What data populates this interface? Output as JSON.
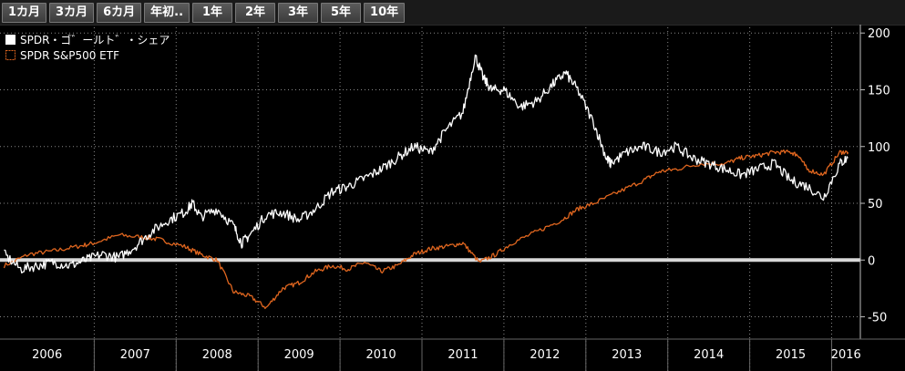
{
  "toolbar": {
    "tabs": [
      {
        "label": "1カ月"
      },
      {
        "label": "3カ月"
      },
      {
        "label": "6カ月"
      },
      {
        "label": "年初.."
      },
      {
        "label": "1年"
      },
      {
        "label": "2年"
      },
      {
        "label": "3年"
      },
      {
        "label": "5年"
      },
      {
        "label": "10年"
      }
    ]
  },
  "chart_data": {
    "type": "line",
    "title": "",
    "xlabel": "",
    "ylabel": "",
    "xlim": [
      2005.85,
      2016.35
    ],
    "ylim": [
      -60,
      205
    ],
    "yticks": [
      -50,
      0,
      50,
      100,
      150,
      200
    ],
    "xticks": [
      "2006",
      "2007",
      "2008",
      "2009",
      "2010",
      "2011",
      "2012",
      "2013",
      "2014",
      "2015",
      "2016"
    ],
    "grid": true,
    "legend_position": "top-left",
    "zero_line": true,
    "series": [
      {
        "name": "SPDR・ゴ゛ールト゛・シェア",
        "color": "#ffffff",
        "x": [
          2005.9,
          2006.1,
          2006.3,
          2006.5,
          2006.7,
          2006.9,
          2007.1,
          2007.3,
          2007.5,
          2007.7,
          2007.9,
          2008.1,
          2008.2,
          2008.3,
          2008.5,
          2008.7,
          2008.8,
          2008.9,
          2009.1,
          2009.3,
          2009.5,
          2009.7,
          2009.9,
          2010.1,
          2010.3,
          2010.5,
          2010.7,
          2010.9,
          2011.1,
          2011.3,
          2011.5,
          2011.65,
          2011.75,
          2011.85,
          2012.0,
          2012.2,
          2012.4,
          2012.6,
          2012.75,
          2012.9,
          2013.1,
          2013.25,
          2013.3,
          2013.5,
          2013.7,
          2013.9,
          2014.1,
          2014.3,
          2014.5,
          2014.7,
          2014.9,
          2015.1,
          2015.3,
          2015.5,
          2015.7,
          2015.9,
          2016.1,
          2016.2
        ],
        "y": [
          5,
          -8,
          -5,
          -2,
          -5,
          0,
          5,
          2,
          12,
          25,
          35,
          42,
          50,
          38,
          45,
          30,
          15,
          22,
          40,
          42,
          35,
          45,
          60,
          65,
          72,
          80,
          90,
          100,
          95,
          115,
          130,
          180,
          160,
          150,
          150,
          135,
          140,
          155,
          165,
          150,
          120,
          90,
          85,
          95,
          100,
          95,
          100,
          90,
          85,
          80,
          75,
          80,
          85,
          70,
          65,
          55,
          85,
          90
        ]
      },
      {
        "name": "SPDR S&P500 ETF",
        "color": "#e0661f",
        "x": [
          2005.9,
          2006.2,
          2006.5,
          2006.8,
          2007.0,
          2007.3,
          2007.6,
          2007.8,
          2008.1,
          2008.3,
          2008.5,
          2008.7,
          2008.9,
          2009.1,
          2009.3,
          2009.5,
          2009.7,
          2009.9,
          2010.1,
          2010.3,
          2010.5,
          2010.7,
          2010.9,
          2011.1,
          2011.3,
          2011.5,
          2011.7,
          2011.9,
          2012.1,
          2012.4,
          2012.7,
          2012.9,
          2013.1,
          2013.4,
          2013.7,
          2013.9,
          2014.1,
          2014.4,
          2014.7,
          2014.9,
          2015.1,
          2015.3,
          2015.5,
          2015.6,
          2015.7,
          2015.9,
          2016.1,
          2016.2
        ],
        "y": [
          -5,
          5,
          8,
          12,
          15,
          22,
          20,
          18,
          12,
          5,
          0,
          -28,
          -32,
          -42,
          -25,
          -20,
          -10,
          -5,
          -8,
          -2,
          -10,
          -5,
          5,
          10,
          12,
          15,
          -2,
          5,
          15,
          25,
          35,
          45,
          50,
          60,
          70,
          78,
          80,
          85,
          85,
          90,
          92,
          95,
          95,
          92,
          80,
          75,
          95,
          95
        ]
      }
    ]
  }
}
